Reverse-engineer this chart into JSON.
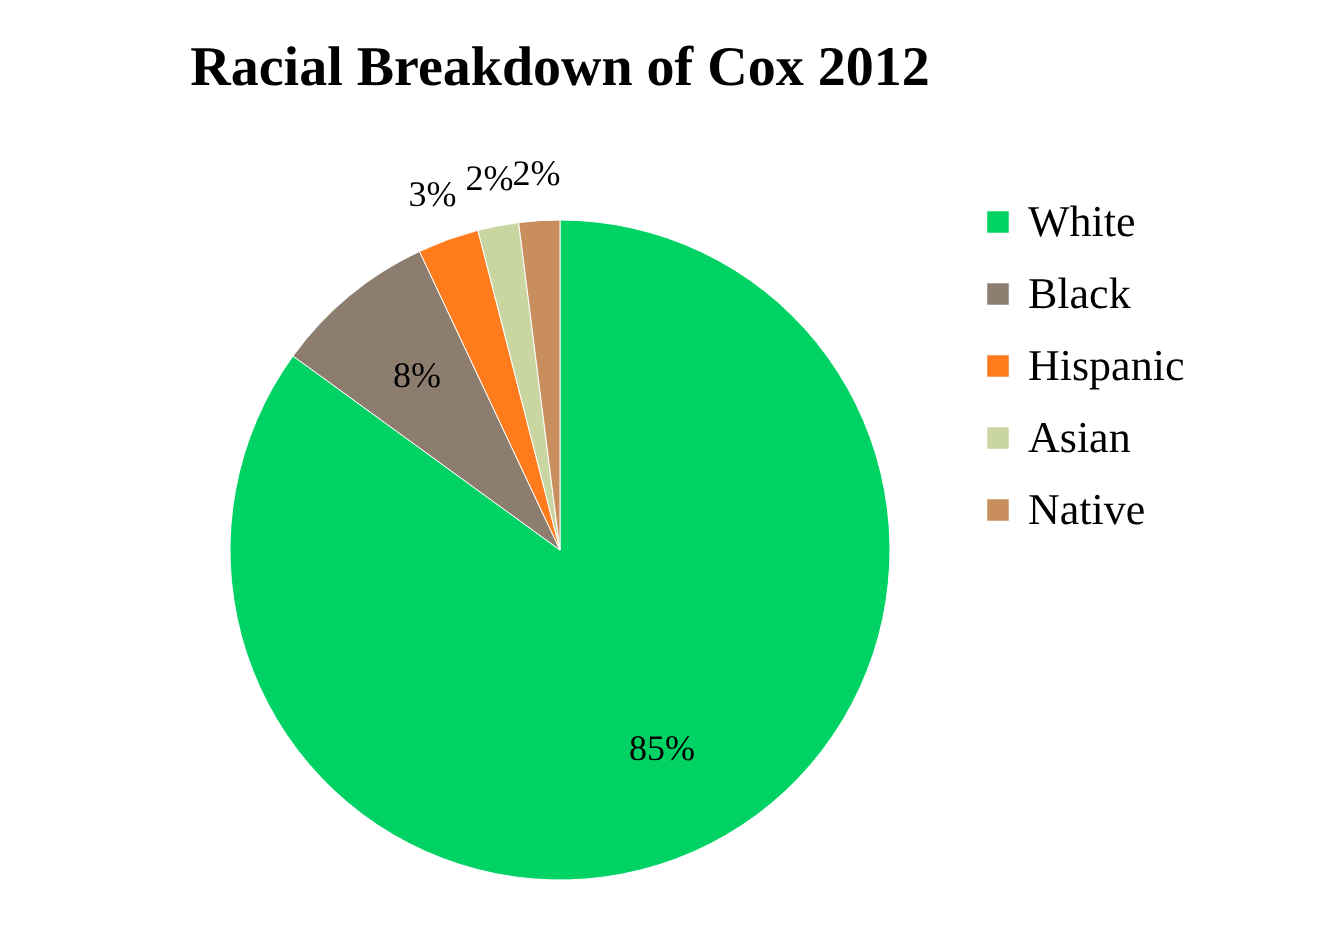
{
  "chart_data": {
    "type": "pie",
    "title": "Racial Breakdown of Cox 2012",
    "categories": [
      "White",
      "Black",
      "Hispanic",
      "Asian",
      "Native"
    ],
    "values": [
      85,
      8,
      3,
      2,
      2
    ],
    "colors": [
      "#00d364",
      "#8c7d6e",
      "#ff7b1c",
      "#c9d6a1",
      "#c98e5e"
    ],
    "value_labels": [
      "85%",
      "8%",
      "3%",
      "2%",
      "2%"
    ],
    "legend": "right"
  }
}
